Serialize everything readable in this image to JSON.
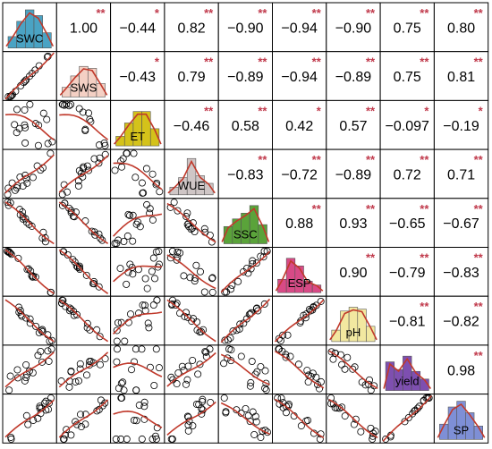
{
  "chart_data": {
    "type": "correlation-matrix",
    "variables": [
      "SWC",
      "SWS",
      "ET",
      "WUE",
      "SSC",
      "ESP",
      "pH",
      "yield",
      "SP"
    ],
    "variable_colors": [
      "#4aa3c4",
      "#f4d0c4",
      "#d4c21a",
      "#cfc6c6",
      "#5aa33a",
      "#d84a86",
      "#f2e8a0",
      "#7e4fb0",
      "#7e8fd6"
    ],
    "correlations": [
      {
        "row": 0,
        "col": 1,
        "value": "1.00",
        "sig": "**"
      },
      {
        "row": 0,
        "col": 2,
        "value": "−0.44",
        "sig": "*"
      },
      {
        "row": 0,
        "col": 3,
        "value": "0.82",
        "sig": "**"
      },
      {
        "row": 0,
        "col": 4,
        "value": "−0.90",
        "sig": "**"
      },
      {
        "row": 0,
        "col": 5,
        "value": "−0.94",
        "sig": "**"
      },
      {
        "row": 0,
        "col": 6,
        "value": "−0.90",
        "sig": "**"
      },
      {
        "row": 0,
        "col": 7,
        "value": "0.75",
        "sig": "**"
      },
      {
        "row": 0,
        "col": 8,
        "value": "0.80",
        "sig": "**"
      },
      {
        "row": 1,
        "col": 2,
        "value": "−0.43",
        "sig": "*"
      },
      {
        "row": 1,
        "col": 3,
        "value": "0.79",
        "sig": "**"
      },
      {
        "row": 1,
        "col": 4,
        "value": "−0.89",
        "sig": "**"
      },
      {
        "row": 1,
        "col": 5,
        "value": "−0.94",
        "sig": "**"
      },
      {
        "row": 1,
        "col": 6,
        "value": "−0.89",
        "sig": "**"
      },
      {
        "row": 1,
        "col": 7,
        "value": "0.75",
        "sig": "**"
      },
      {
        "row": 1,
        "col": 8,
        "value": "0.81",
        "sig": "**"
      },
      {
        "row": 2,
        "col": 3,
        "value": "−0.46",
        "sig": "**"
      },
      {
        "row": 2,
        "col": 4,
        "value": "0.58",
        "sig": "**"
      },
      {
        "row": 2,
        "col": 5,
        "value": "0.42",
        "sig": "*"
      },
      {
        "row": 2,
        "col": 6,
        "value": "0.57",
        "sig": "**"
      },
      {
        "row": 2,
        "col": 7,
        "value": "−0.097",
        "sig": "*"
      },
      {
        "row": 2,
        "col": 8,
        "value": "−0.19",
        "sig": "*"
      },
      {
        "row": 3,
        "col": 4,
        "value": "−0.83",
        "sig": "**"
      },
      {
        "row": 3,
        "col": 5,
        "value": "−0.72",
        "sig": "**"
      },
      {
        "row": 3,
        "col": 6,
        "value": "−0.89",
        "sig": "**"
      },
      {
        "row": 3,
        "col": 7,
        "value": "0.72",
        "sig": "**"
      },
      {
        "row": 3,
        "col": 8,
        "value": "0.71",
        "sig": "**"
      },
      {
        "row": 4,
        "col": 5,
        "value": "0.88",
        "sig": "**"
      },
      {
        "row": 4,
        "col": 6,
        "value": "0.93",
        "sig": "**"
      },
      {
        "row": 4,
        "col": 7,
        "value": "−0.65",
        "sig": "**"
      },
      {
        "row": 4,
        "col": 8,
        "value": "−0.67",
        "sig": "**"
      },
      {
        "row": 5,
        "col": 6,
        "value": "0.90",
        "sig": "**"
      },
      {
        "row": 5,
        "col": 7,
        "value": "−0.79",
        "sig": "**"
      },
      {
        "row": 5,
        "col": 8,
        "value": "−0.83",
        "sig": "**"
      },
      {
        "row": 6,
        "col": 7,
        "value": "−0.81",
        "sig": "**"
      },
      {
        "row": 6,
        "col": 8,
        "value": "−0.82",
        "sig": "**"
      },
      {
        "row": 7,
        "col": 8,
        "value": "0.98",
        "sig": "**"
      }
    ],
    "histograms": [
      [
        0.3,
        0.7,
        1.0,
        0.85,
        0.4
      ],
      [
        0.25,
        0.55,
        0.8,
        0.75,
        0.35
      ],
      [
        0.25,
        0.6,
        0.9,
        0.9,
        0.45
      ],
      [
        0.2,
        0.45,
        0.95,
        0.5,
        0.3
      ],
      [
        0.45,
        0.65,
        0.8,
        1.0,
        0.5
      ],
      [
        0.35,
        0.9,
        0.7,
        0.3,
        0.2
      ],
      [
        0.3,
        0.8,
        0.9,
        0.85,
        0.4
      ],
      [
        0.75,
        0.55,
        0.9,
        0.5,
        0.3
      ],
      [
        0.4,
        0.85,
        1.0,
        0.7,
        0.35
      ]
    ]
  }
}
